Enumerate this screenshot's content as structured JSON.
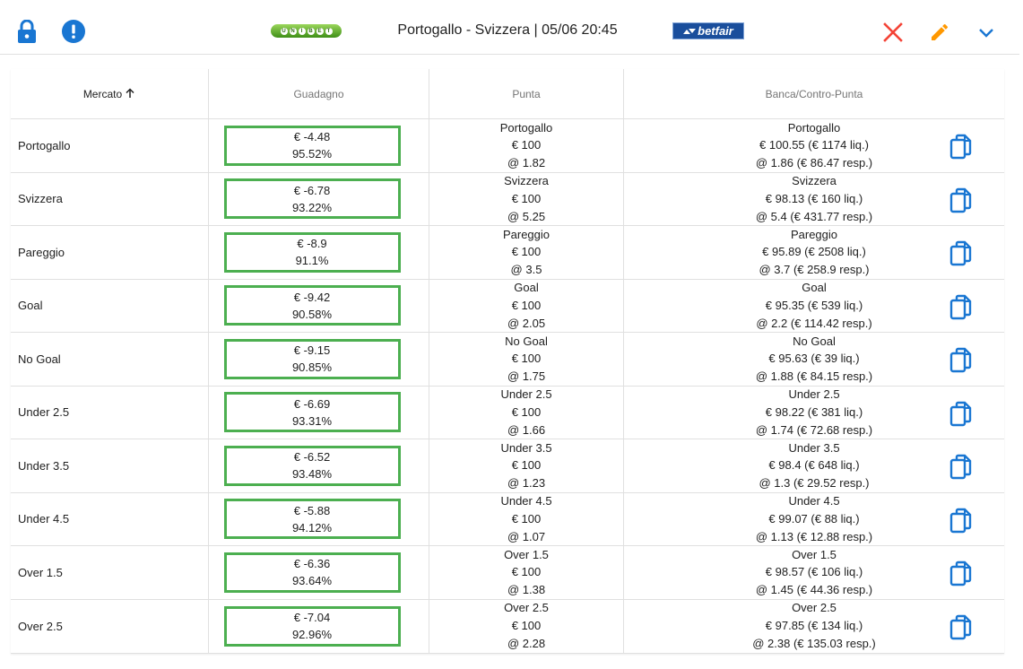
{
  "header": {
    "title": "Portogallo - Svizzera | 05/06 20:45",
    "unibet_logo": "UNIBET",
    "betfair_logo": "betfair",
    "icons": {
      "lock": "lock-icon",
      "alert": "alert-circle-icon",
      "close": "close-icon",
      "edit": "pencil-icon",
      "expand": "chevron-down-icon"
    },
    "colors": {
      "accent": "#1976d2",
      "close": "#f44336",
      "edit": "#ff9800",
      "gain_border": "#4caf50"
    }
  },
  "table": {
    "columns": {
      "mercato": "Mercato",
      "guadagno": "Guadagno",
      "punta": "Punta",
      "banca": "Banca/Contro-Punta"
    },
    "rows": [
      {
        "mercato": "Portogallo",
        "gain": "€ -4.48",
        "pct": "95.52%",
        "punta_name": "Portogallo",
        "punta_stake": "€ 100",
        "punta_odds": "@ 1.82",
        "banca_name": "Portogallo",
        "banca_stake": "€ 100.55 (€ 1174 liq.)",
        "banca_odds": "@ 1.86 (€ 86.47 resp.)"
      },
      {
        "mercato": "Svizzera",
        "gain": "€ -6.78",
        "pct": "93.22%",
        "punta_name": "Svizzera",
        "punta_stake": "€ 100",
        "punta_odds": "@ 5.25",
        "banca_name": "Svizzera",
        "banca_stake": "€ 98.13 (€ 160 liq.)",
        "banca_odds": "@ 5.4 (€ 431.77 resp.)"
      },
      {
        "mercato": "Pareggio",
        "gain": "€ -8.9",
        "pct": "91.1%",
        "punta_name": "Pareggio",
        "punta_stake": "€ 100",
        "punta_odds": "@ 3.5",
        "banca_name": "Pareggio",
        "banca_stake": "€ 95.89 (€ 2508 liq.)",
        "banca_odds": "@ 3.7 (€ 258.9 resp.)"
      },
      {
        "mercato": "Goal",
        "gain": "€ -9.42",
        "pct": "90.58%",
        "punta_name": "Goal",
        "punta_stake": "€ 100",
        "punta_odds": "@ 2.05",
        "banca_name": "Goal",
        "banca_stake": "€ 95.35 (€ 539 liq.)",
        "banca_odds": "@ 2.2 (€ 114.42 resp.)"
      },
      {
        "mercato": "No Goal",
        "gain": "€ -9.15",
        "pct": "90.85%",
        "punta_name": "No Goal",
        "punta_stake": "€ 100",
        "punta_odds": "@ 1.75",
        "banca_name": "No Goal",
        "banca_stake": "€ 95.63 (€ 39 liq.)",
        "banca_odds": "@ 1.88 (€ 84.15 resp.)"
      },
      {
        "mercato": "Under 2.5",
        "gain": "€ -6.69",
        "pct": "93.31%",
        "punta_name": "Under 2.5",
        "punta_stake": "€ 100",
        "punta_odds": "@ 1.66",
        "banca_name": "Under 2.5",
        "banca_stake": "€ 98.22 (€ 381 liq.)",
        "banca_odds": "@ 1.74 (€ 72.68 resp.)"
      },
      {
        "mercato": "Under 3.5",
        "gain": "€ -6.52",
        "pct": "93.48%",
        "punta_name": "Under 3.5",
        "punta_stake": "€ 100",
        "punta_odds": "@ 1.23",
        "banca_name": "Under 3.5",
        "banca_stake": "€ 98.4 (€ 648 liq.)",
        "banca_odds": "@ 1.3 (€ 29.52 resp.)"
      },
      {
        "mercato": "Under 4.5",
        "gain": "€ -5.88",
        "pct": "94.12%",
        "punta_name": "Under 4.5",
        "punta_stake": "€ 100",
        "punta_odds": "@ 1.07",
        "banca_name": "Under 4.5",
        "banca_stake": "€ 99.07 (€ 88 liq.)",
        "banca_odds": "@ 1.13 (€ 12.88 resp.)"
      },
      {
        "mercato": "Over 1.5",
        "gain": "€ -6.36",
        "pct": "93.64%",
        "punta_name": "Over 1.5",
        "punta_stake": "€ 100",
        "punta_odds": "@ 1.38",
        "banca_name": "Over 1.5",
        "banca_stake": "€ 98.57 (€ 106 liq.)",
        "banca_odds": "@ 1.45 (€ 44.36 resp.)"
      },
      {
        "mercato": "Over 2.5",
        "gain": "€ -7.04",
        "pct": "92.96%",
        "punta_name": "Over 2.5",
        "punta_stake": "€ 100",
        "punta_odds": "@ 2.28",
        "banca_name": "Over 2.5",
        "banca_stake": "€ 97.85 (€ 134 liq.)",
        "banca_odds": "@ 2.38 (€ 135.03 resp.)"
      }
    ]
  }
}
